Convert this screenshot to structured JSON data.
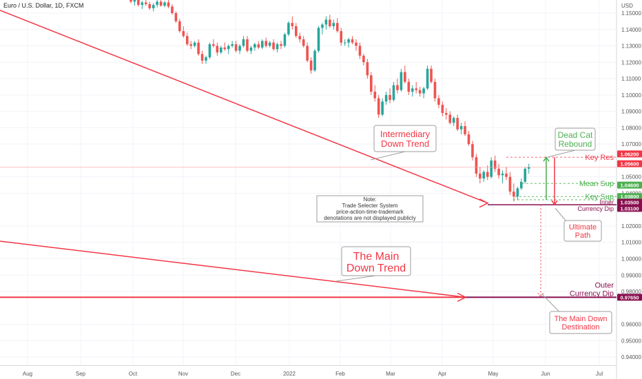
{
  "chart_data": {
    "type": "candlestick",
    "title": "Euro / U.S. Dollar, 1D, FXCM",
    "currency_label": "USD",
    "y_range": [
      0.935,
      1.158
    ],
    "y_ticks": [
      "1.15000",
      "1.14000",
      "1.13000",
      "1.12000",
      "1.11000",
      "1.10000",
      "1.09000",
      "1.08000",
      "1.07000",
      "1.05000",
      "1.04000",
      "1.02000",
      "1.01000",
      "1.00000",
      "0.99000",
      "0.98000",
      "0.96000",
      "0.95000",
      "0.94000"
    ],
    "x_labels": [
      "Aug",
      "Sep",
      "Oct",
      "Nov",
      "Dec",
      "2022",
      "Feb",
      "Mar",
      "Apr",
      "May",
      "Jun",
      "Jul"
    ],
    "last_price": "1.05600",
    "grid": true,
    "candles_ohlc": [
      [
        1.1585,
        1.16,
        1.156,
        1.157
      ],
      [
        1.157,
        1.159,
        1.1545,
        1.158
      ],
      [
        1.158,
        1.1595,
        1.154,
        1.155
      ],
      [
        1.155,
        1.1575,
        1.1525,
        1.1565
      ],
      [
        1.1565,
        1.159,
        1.1545,
        1.1555
      ],
      [
        1.1555,
        1.157,
        1.152,
        1.153
      ],
      [
        1.153,
        1.156,
        1.151,
        1.155
      ],
      [
        1.155,
        1.158,
        1.1535,
        1.157
      ],
      [
        1.157,
        1.159,
        1.154,
        1.1545
      ],
      [
        1.1545,
        1.1575,
        1.1535,
        1.1565
      ],
      [
        1.1565,
        1.158,
        1.153,
        1.154
      ],
      [
        1.154,
        1.1555,
        1.149,
        1.15
      ],
      [
        1.15,
        1.151,
        1.144,
        1.145
      ],
      [
        1.145,
        1.1465,
        1.138,
        1.139
      ],
      [
        1.139,
        1.142,
        1.135,
        1.136
      ],
      [
        1.136,
        1.138,
        1.13,
        1.131
      ],
      [
        1.131,
        1.133,
        1.128,
        1.13
      ],
      [
        1.13,
        1.133,
        1.129,
        1.132
      ],
      [
        1.132,
        1.134,
        1.124,
        1.125
      ],
      [
        1.125,
        1.127,
        1.119,
        1.121
      ],
      [
        1.121,
        1.124,
        1.119,
        1.123
      ],
      [
        1.123,
        1.132,
        1.122,
        1.131
      ],
      [
        1.131,
        1.134,
        1.129,
        1.13
      ],
      [
        1.13,
        1.132,
        1.124,
        1.126
      ],
      [
        1.126,
        1.13,
        1.125,
        1.129
      ],
      [
        1.129,
        1.132,
        1.127,
        1.128
      ],
      [
        1.128,
        1.131,
        1.125,
        1.13
      ],
      [
        1.13,
        1.133,
        1.129,
        1.131
      ],
      [
        1.131,
        1.133,
        1.126,
        1.127
      ],
      [
        1.127,
        1.131,
        1.125,
        1.13
      ],
      [
        1.13,
        1.136,
        1.129,
        1.134
      ],
      [
        1.134,
        1.136,
        1.126,
        1.127
      ],
      [
        1.127,
        1.13,
        1.125,
        1.129
      ],
      [
        1.129,
        1.132,
        1.127,
        1.131
      ],
      [
        1.131,
        1.133,
        1.128,
        1.129
      ],
      [
        1.129,
        1.134,
        1.128,
        1.133
      ],
      [
        1.133,
        1.135,
        1.129,
        1.13
      ],
      [
        1.13,
        1.133,
        1.129,
        1.132
      ],
      [
        1.132,
        1.134,
        1.127,
        1.128
      ],
      [
        1.128,
        1.132,
        1.126,
        1.131
      ],
      [
        1.131,
        1.133,
        1.128,
        1.13
      ],
      [
        1.13,
        1.138,
        1.129,
        1.137
      ],
      [
        1.137,
        1.145,
        1.136,
        1.144
      ],
      [
        1.144,
        1.148,
        1.14,
        1.142
      ],
      [
        1.142,
        1.144,
        1.135,
        1.136
      ],
      [
        1.136,
        1.138,
        1.132,
        1.134
      ],
      [
        1.134,
        1.136,
        1.129,
        1.13
      ],
      [
        1.13,
        1.132,
        1.12,
        1.121
      ],
      [
        1.121,
        1.123,
        1.113,
        1.115
      ],
      [
        1.115,
        1.128,
        1.114,
        1.127
      ],
      [
        1.127,
        1.142,
        1.126,
        1.141
      ],
      [
        1.141,
        1.144,
        1.137,
        1.143
      ],
      [
        1.143,
        1.148,
        1.14,
        1.146
      ],
      [
        1.146,
        1.149,
        1.141,
        1.142
      ],
      [
        1.142,
        1.146,
        1.14,
        1.144
      ],
      [
        1.144,
        1.147,
        1.138,
        1.139
      ],
      [
        1.139,
        1.141,
        1.13,
        1.132
      ],
      [
        1.132,
        1.134,
        1.13,
        1.132
      ],
      [
        1.132,
        1.135,
        1.129,
        1.134
      ],
      [
        1.134,
        1.136,
        1.131,
        1.132
      ],
      [
        1.132,
        1.134,
        1.127,
        1.13
      ],
      [
        1.13,
        1.132,
        1.122,
        1.124
      ],
      [
        1.124,
        1.125,
        1.118,
        1.12
      ],
      [
        1.12,
        1.122,
        1.11,
        1.112
      ],
      [
        1.112,
        1.114,
        1.1,
        1.102
      ],
      [
        1.102,
        1.106,
        1.096,
        1.098
      ],
      [
        1.098,
        1.1,
        1.086,
        1.088
      ],
      [
        1.088,
        1.098,
        1.087,
        1.096
      ],
      [
        1.096,
        1.102,
        1.094,
        1.1
      ],
      [
        1.1,
        1.104,
        1.095,
        1.097
      ],
      [
        1.097,
        1.108,
        1.096,
        1.106
      ],
      [
        1.106,
        1.11,
        1.101,
        1.103
      ],
      [
        1.103,
        1.116,
        1.102,
        1.114
      ],
      [
        1.114,
        1.118,
        1.107,
        1.108
      ],
      [
        1.108,
        1.11,
        1.1,
        1.102
      ],
      [
        1.102,
        1.106,
        1.099,
        1.104
      ],
      [
        1.104,
        1.108,
        1.101,
        1.103
      ],
      [
        1.103,
        1.105,
        1.099,
        1.101
      ],
      [
        1.101,
        1.105,
        1.098,
        1.104
      ],
      [
        1.104,
        1.118,
        1.103,
        1.116
      ],
      [
        1.116,
        1.118,
        1.107,
        1.108
      ],
      [
        1.108,
        1.11,
        1.096,
        1.098
      ],
      [
        1.098,
        1.1,
        1.092,
        1.094
      ],
      [
        1.094,
        1.096,
        1.087,
        1.089
      ],
      [
        1.089,
        1.092,
        1.085,
        1.088
      ],
      [
        1.088,
        1.09,
        1.082,
        1.083
      ],
      [
        1.083,
        1.087,
        1.081,
        1.086
      ],
      [
        1.086,
        1.088,
        1.078,
        1.079
      ],
      [
        1.079,
        1.083,
        1.076,
        1.081
      ],
      [
        1.081,
        1.084,
        1.075,
        1.076
      ],
      [
        1.076,
        1.078,
        1.069,
        1.07
      ],
      [
        1.07,
        1.072,
        1.06,
        1.062
      ],
      [
        1.062,
        1.064,
        1.05,
        1.052
      ],
      [
        1.052,
        1.056,
        1.046,
        1.049
      ],
      [
        1.049,
        1.054,
        1.047,
        1.053
      ],
      [
        1.053,
        1.057,
        1.048,
        1.05
      ],
      [
        1.05,
        1.062,
        1.049,
        1.06
      ],
      [
        1.06,
        1.063,
        1.053,
        1.055
      ],
      [
        1.055,
        1.058,
        1.049,
        1.051
      ],
      [
        1.051,
        1.054,
        1.046,
        1.052
      ],
      [
        1.052,
        1.056,
        1.048,
        1.05
      ],
      [
        1.05,
        1.053,
        1.039,
        1.041
      ],
      [
        1.041,
        1.046,
        1.035,
        1.038
      ],
      [
        1.038,
        1.044,
        1.036,
        1.043
      ],
      [
        1.043,
        1.049,
        1.042,
        1.047
      ],
      [
        1.047,
        1.056,
        1.046,
        1.055
      ],
      [
        1.055,
        1.058,
        1.052,
        1.056
      ]
    ],
    "horizontal_levels": [
      {
        "label": "Key Res",
        "tag": "1.06200",
        "value": 1.062,
        "color": "#f23645",
        "style": "dashed"
      },
      {
        "label": "",
        "tag": "1.05600",
        "value": 1.056,
        "color": "#f23645",
        "style": "price"
      },
      {
        "label": "Mean Sup",
        "tag": "1.04600",
        "value": 1.046,
        "color": "#4caf50",
        "style": "dashed"
      },
      {
        "label": "Key Sup",
        "tag": "1.03800",
        "value": 1.038,
        "color": "#4caf50",
        "style": "dashed"
      },
      {
        "label": "Inner",
        "tag": "1.03500",
        "value": 1.035,
        "color": "#880e4f",
        "style": "solid"
      },
      {
        "label": "Currency Dip",
        "tag": "1.03100",
        "value": 1.031,
        "color": "#880e4f",
        "style": "solid"
      }
    ],
    "outer_level": {
      "label_line1": "Outer",
      "label_line2": "Currency Dip",
      "tag": "0.97650",
      "value": 0.9765,
      "color": "#880e4f"
    },
    "annotations": {
      "intermediary_line1": "Intermediary",
      "intermediary_line2": "Down Trend",
      "main_line1": "The Main",
      "main_line2": "Down Trend",
      "dead_cat_line1": "Dead Cat",
      "dead_cat_line2": "Rebound",
      "ultimate_line1": "Ultimate",
      "ultimate_line2": "Path",
      "destination_line1": "The Main Down",
      "destination_line2": "Destination",
      "note_line1": "Note:",
      "note_line2": "Trade Selecter System",
      "note_line3": "price-action-time-trademark",
      "note_line4": "denotations are not displayed publicly"
    },
    "colors": {
      "up": "#26a69a",
      "down": "#ef5350",
      "trend": "#f23645",
      "level": "#880e4f",
      "green": "#4caf50"
    }
  }
}
